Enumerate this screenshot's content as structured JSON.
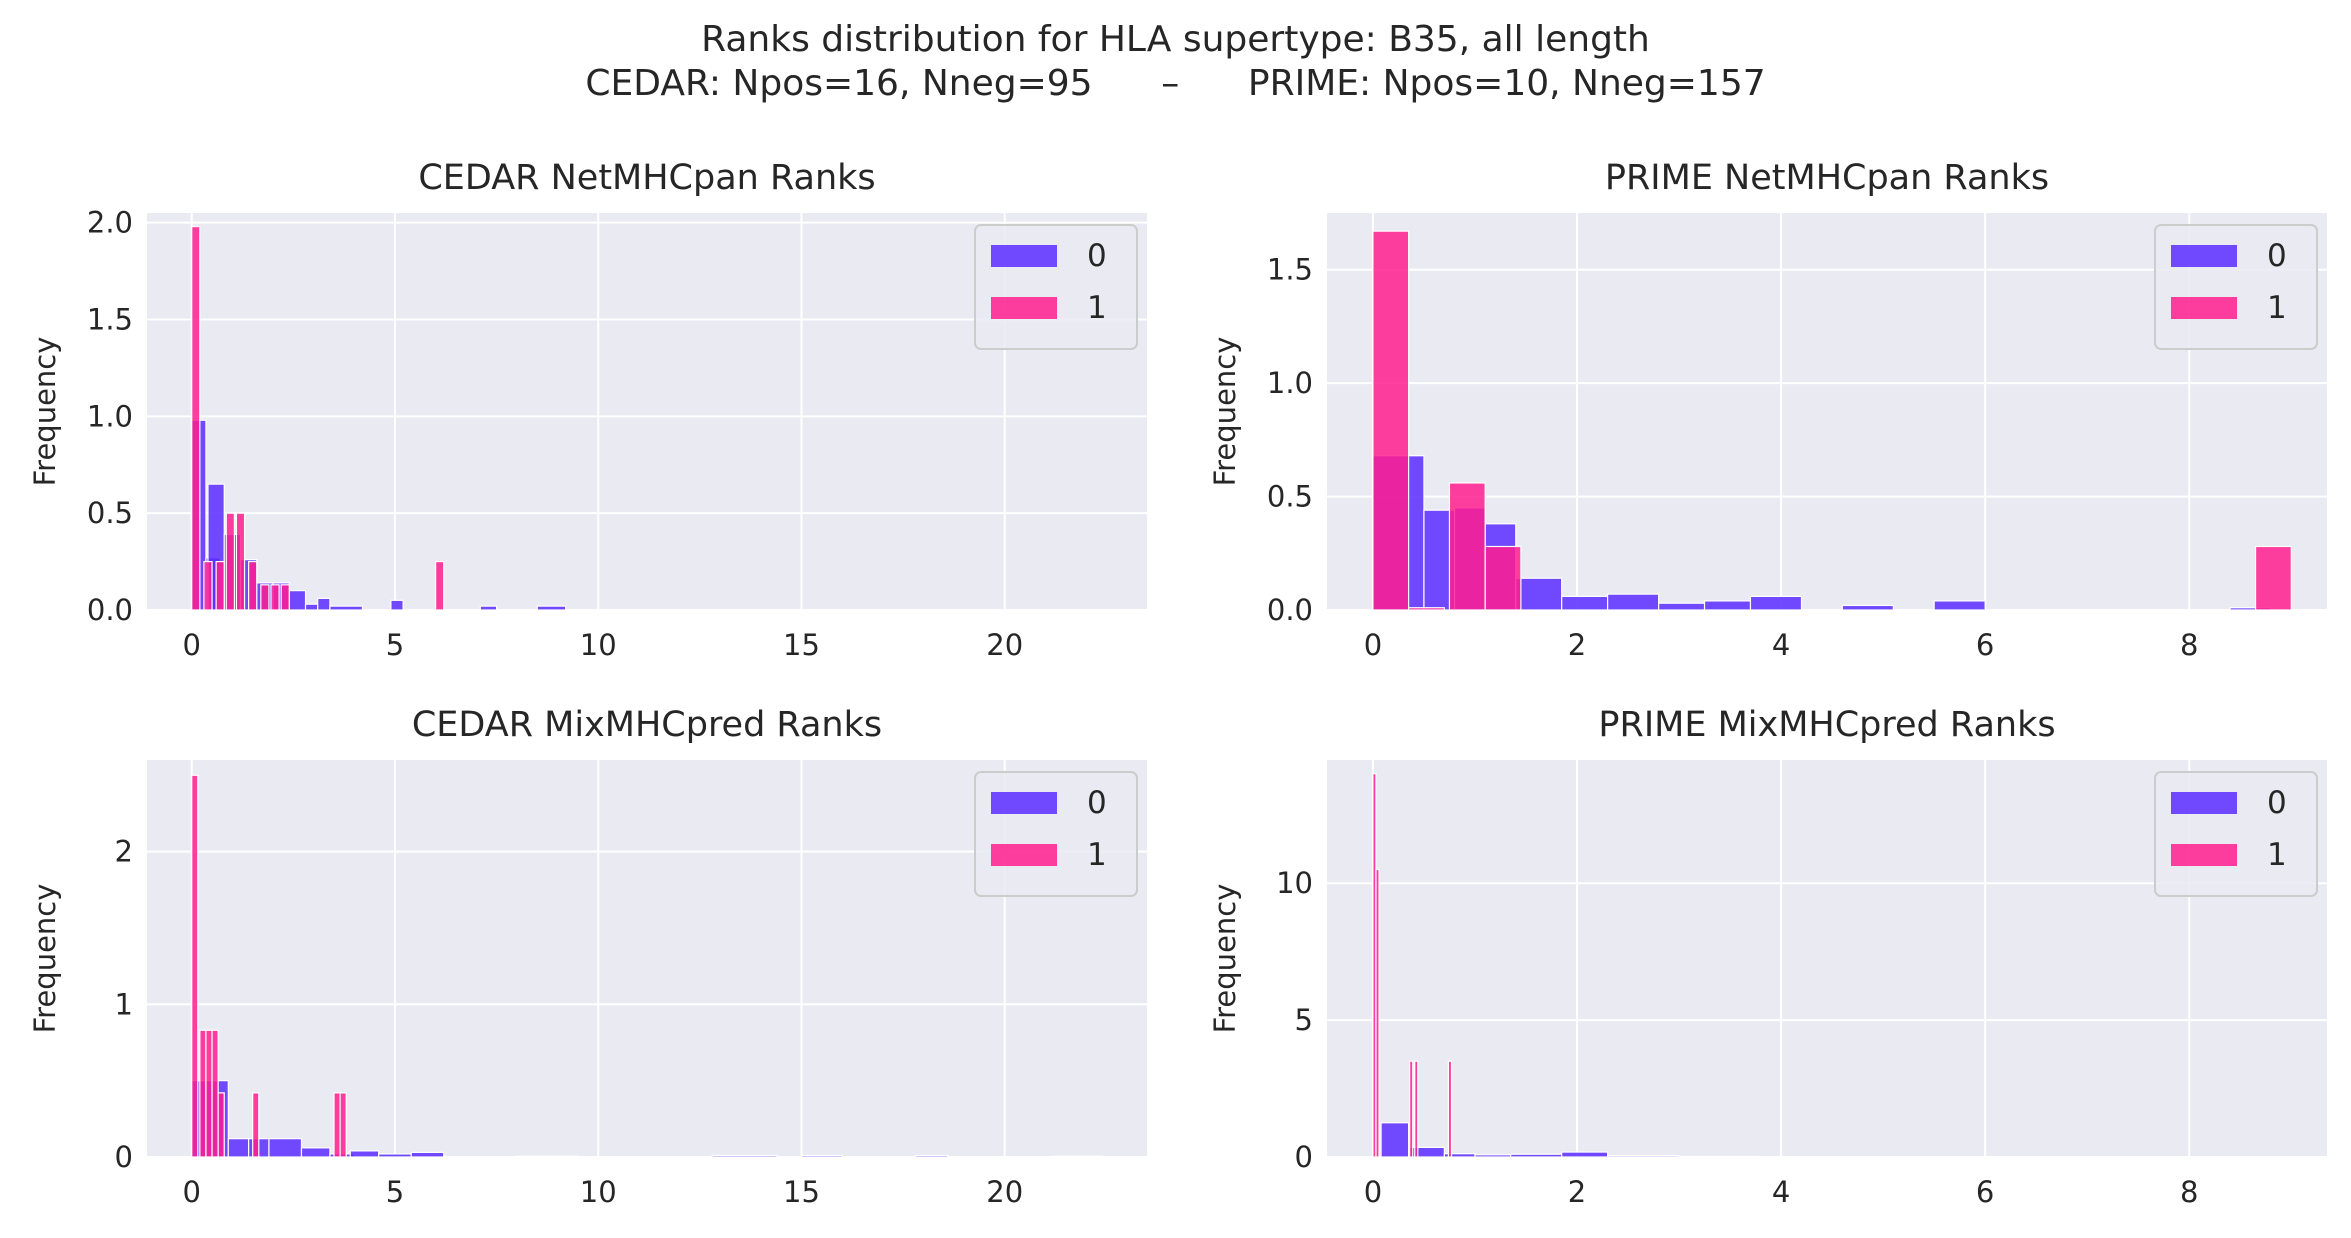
{
  "figure": {
    "title_line1": "Ranks distribution for HLA supertype: B35, all length",
    "title_line2": "CEDAR: Npos=16, Nneg=95      –      PRIME: Npos=10, Nneg=157"
  },
  "colors": {
    "series_0": "#5b2cff",
    "series_1": "#ff1f8f",
    "background": "#eaeaf2",
    "grid": "#ffffff"
  },
  "chart_data": [
    {
      "type": "bar",
      "title": "CEDAR NetMHCpan Ranks",
      "xlabel": "",
      "ylabel": "Frequency",
      "xlim": [
        -1.1,
        23.5
      ],
      "ylim": [
        0,
        2.05
      ],
      "xticks": [
        0,
        5,
        10,
        15,
        20
      ],
      "yticks": [
        0.0,
        0.5,
        1.0,
        1.5,
        2.0
      ],
      "ytick_labels": [
        "0.0",
        "0.5",
        "1.0",
        "1.5",
        "2.0"
      ],
      "grid": true,
      "legend": {
        "placement": "top-right",
        "entries": [
          "0",
          "1"
        ]
      },
      "series": [
        {
          "name": "0",
          "bins": [
            [
              0,
              0.35,
              0.98
            ],
            [
              0.35,
              0.7,
              0.27
            ],
            [
              0.4,
              0.8,
              0.65
            ],
            [
              0.8,
              1.2,
              0.39
            ],
            [
              1.2,
              1.6,
              0.26
            ],
            [
              1.6,
              2.0,
              0.14
            ],
            [
              2.0,
              2.4,
              0.14
            ],
            [
              2.4,
              2.8,
              0.1
            ],
            [
              2.8,
              3.1,
              0.03
            ],
            [
              3.1,
              3.4,
              0.06
            ],
            [
              3.4,
              4.2,
              0.02
            ],
            [
              4.9,
              5.2,
              0.05
            ],
            [
              7.1,
              7.5,
              0.02
            ],
            [
              8.5,
              9.2,
              0.02
            ]
          ]
        },
        {
          "name": "1",
          "bins": [
            [
              0,
              0.2,
              1.98
            ],
            [
              0.3,
              0.5,
              0.25
            ],
            [
              0.6,
              0.8,
              0.25
            ],
            [
              0.85,
              1.05,
              0.5
            ],
            [
              1.1,
              1.3,
              0.5
            ],
            [
              1.4,
              1.6,
              0.25
            ],
            [
              1.7,
              1.9,
              0.13
            ],
            [
              1.95,
              2.15,
              0.13
            ],
            [
              2.2,
              2.4,
              0.13
            ],
            [
              6.0,
              6.2,
              0.25
            ]
          ]
        }
      ]
    },
    {
      "type": "bar",
      "title": "PRIME NetMHCpan Ranks",
      "xlabel": "",
      "ylabel": "Frequency",
      "xlim": [
        -0.45,
        9.35
      ],
      "ylim": [
        0,
        1.75
      ],
      "xticks": [
        0,
        2,
        4,
        6,
        8
      ],
      "yticks": [
        0.0,
        0.5,
        1.0,
        1.5
      ],
      "ytick_labels": [
        "0.0",
        "0.5",
        "1.0",
        "1.5"
      ],
      "grid": true,
      "legend": {
        "placement": "top-right",
        "entries": [
          "0",
          "1"
        ]
      },
      "series": [
        {
          "name": "0",
          "bins": [
            [
              0,
              0.5,
              0.68
            ],
            [
              0.5,
              0.8,
              0.44
            ],
            [
              0.8,
              1.1,
              0.45
            ],
            [
              1.1,
              1.4,
              0.38
            ],
            [
              1.4,
              1.85,
              0.14
            ],
            [
              1.85,
              2.3,
              0.06
            ],
            [
              2.3,
              2.8,
              0.07
            ],
            [
              2.8,
              3.25,
              0.03
            ],
            [
              3.25,
              3.7,
              0.04
            ],
            [
              3.7,
              4.2,
              0.06
            ],
            [
              4.6,
              5.1,
              0.02
            ],
            [
              5.5,
              6.0,
              0.04
            ],
            [
              8.4,
              8.8,
              0.01
            ]
          ]
        },
        {
          "name": "1",
          "bins": [
            [
              0,
              0.35,
              1.67
            ],
            [
              0.35,
              0.7,
              0.01
            ],
            [
              0.75,
              1.1,
              0.56
            ],
            [
              1.1,
              1.45,
              0.28
            ],
            [
              8.65,
              9.0,
              0.28
            ]
          ]
        }
      ]
    },
    {
      "type": "bar",
      "title": "CEDAR MixMHCpred Ranks",
      "xlabel": "",
      "ylabel": "Frequency",
      "xlim": [
        -1.1,
        23.5
      ],
      "ylim": [
        0,
        2.6
      ],
      "xticks": [
        0,
        5,
        10,
        15,
        20
      ],
      "yticks": [
        0,
        1,
        2
      ],
      "ytick_labels": [
        "0",
        "1",
        "2"
      ],
      "grid": true,
      "legend": {
        "placement": "top-right",
        "entries": [
          "0",
          "1"
        ]
      },
      "series": [
        {
          "name": "0",
          "bins": [
            [
              0,
              0.5,
              0.5
            ],
            [
              0.5,
              0.9,
              0.5
            ],
            [
              0.9,
              1.4,
              0.12
            ],
            [
              1.4,
              1.9,
              0.12
            ],
            [
              1.9,
              2.7,
              0.12
            ],
            [
              2.7,
              3.4,
              0.06
            ],
            [
              3.4,
              4.0,
              0.02
            ],
            [
              3.9,
              4.6,
              0.04
            ],
            [
              4.6,
              5.4,
              0.02
            ],
            [
              5.4,
              6.2,
              0.03
            ],
            [
              8.0,
              9.5,
              0.005
            ],
            [
              12.8,
              14.4,
              0.01
            ],
            [
              15.0,
              16.0,
              0.01
            ],
            [
              17.8,
              18.6,
              0.01
            ],
            [
              21.2,
              22.4,
              0.005
            ]
          ]
        },
        {
          "name": "1",
          "bins": [
            [
              0,
              0.15,
              2.5
            ],
            [
              0.2,
              0.35,
              0.83
            ],
            [
              0.35,
              0.5,
              0.83
            ],
            [
              0.5,
              0.65,
              0.83
            ],
            [
              0.65,
              0.8,
              0.42
            ],
            [
              1.5,
              1.65,
              0.42
            ],
            [
              3.5,
              3.65,
              0.42
            ],
            [
              3.65,
              3.8,
              0.42
            ]
          ]
        }
      ]
    },
    {
      "type": "bar",
      "title": "PRIME MixMHCpred Ranks",
      "xlabel": "",
      "ylabel": "Frequency",
      "xlim": [
        -0.45,
        9.35
      ],
      "ylim": [
        0,
        14.5
      ],
      "xticks": [
        0,
        2,
        4,
        6,
        8
      ],
      "yticks": [
        0,
        5,
        10
      ],
      "ytick_labels": [
        "0",
        "5",
        "10"
      ],
      "grid": true,
      "legend": {
        "placement": "top-right",
        "entries": [
          "0",
          "1"
        ]
      },
      "series": [
        {
          "name": "0",
          "bins": [
            [
              0.08,
              0.35,
              1.25
            ],
            [
              0.35,
              0.7,
              0.35
            ],
            [
              0.7,
              1.0,
              0.12
            ],
            [
              1.0,
              1.35,
              0.08
            ],
            [
              1.35,
              1.85,
              0.1
            ],
            [
              1.85,
              2.3,
              0.18
            ],
            [
              2.3,
              3.0,
              0.05
            ],
            [
              3.0,
              3.8,
              0.02
            ],
            [
              4.2,
              4.8,
              0.01
            ],
            [
              8.5,
              9.0,
              0.01
            ]
          ]
        },
        {
          "name": "1",
          "bins": [
            [
              0.0,
              0.03,
              14.0
            ],
            [
              0.03,
              0.06,
              10.5
            ],
            [
              0.36,
              0.39,
              3.5
            ],
            [
              0.41,
              0.44,
              3.5
            ],
            [
              0.74,
              0.77,
              3.5
            ]
          ]
        }
      ]
    }
  ]
}
